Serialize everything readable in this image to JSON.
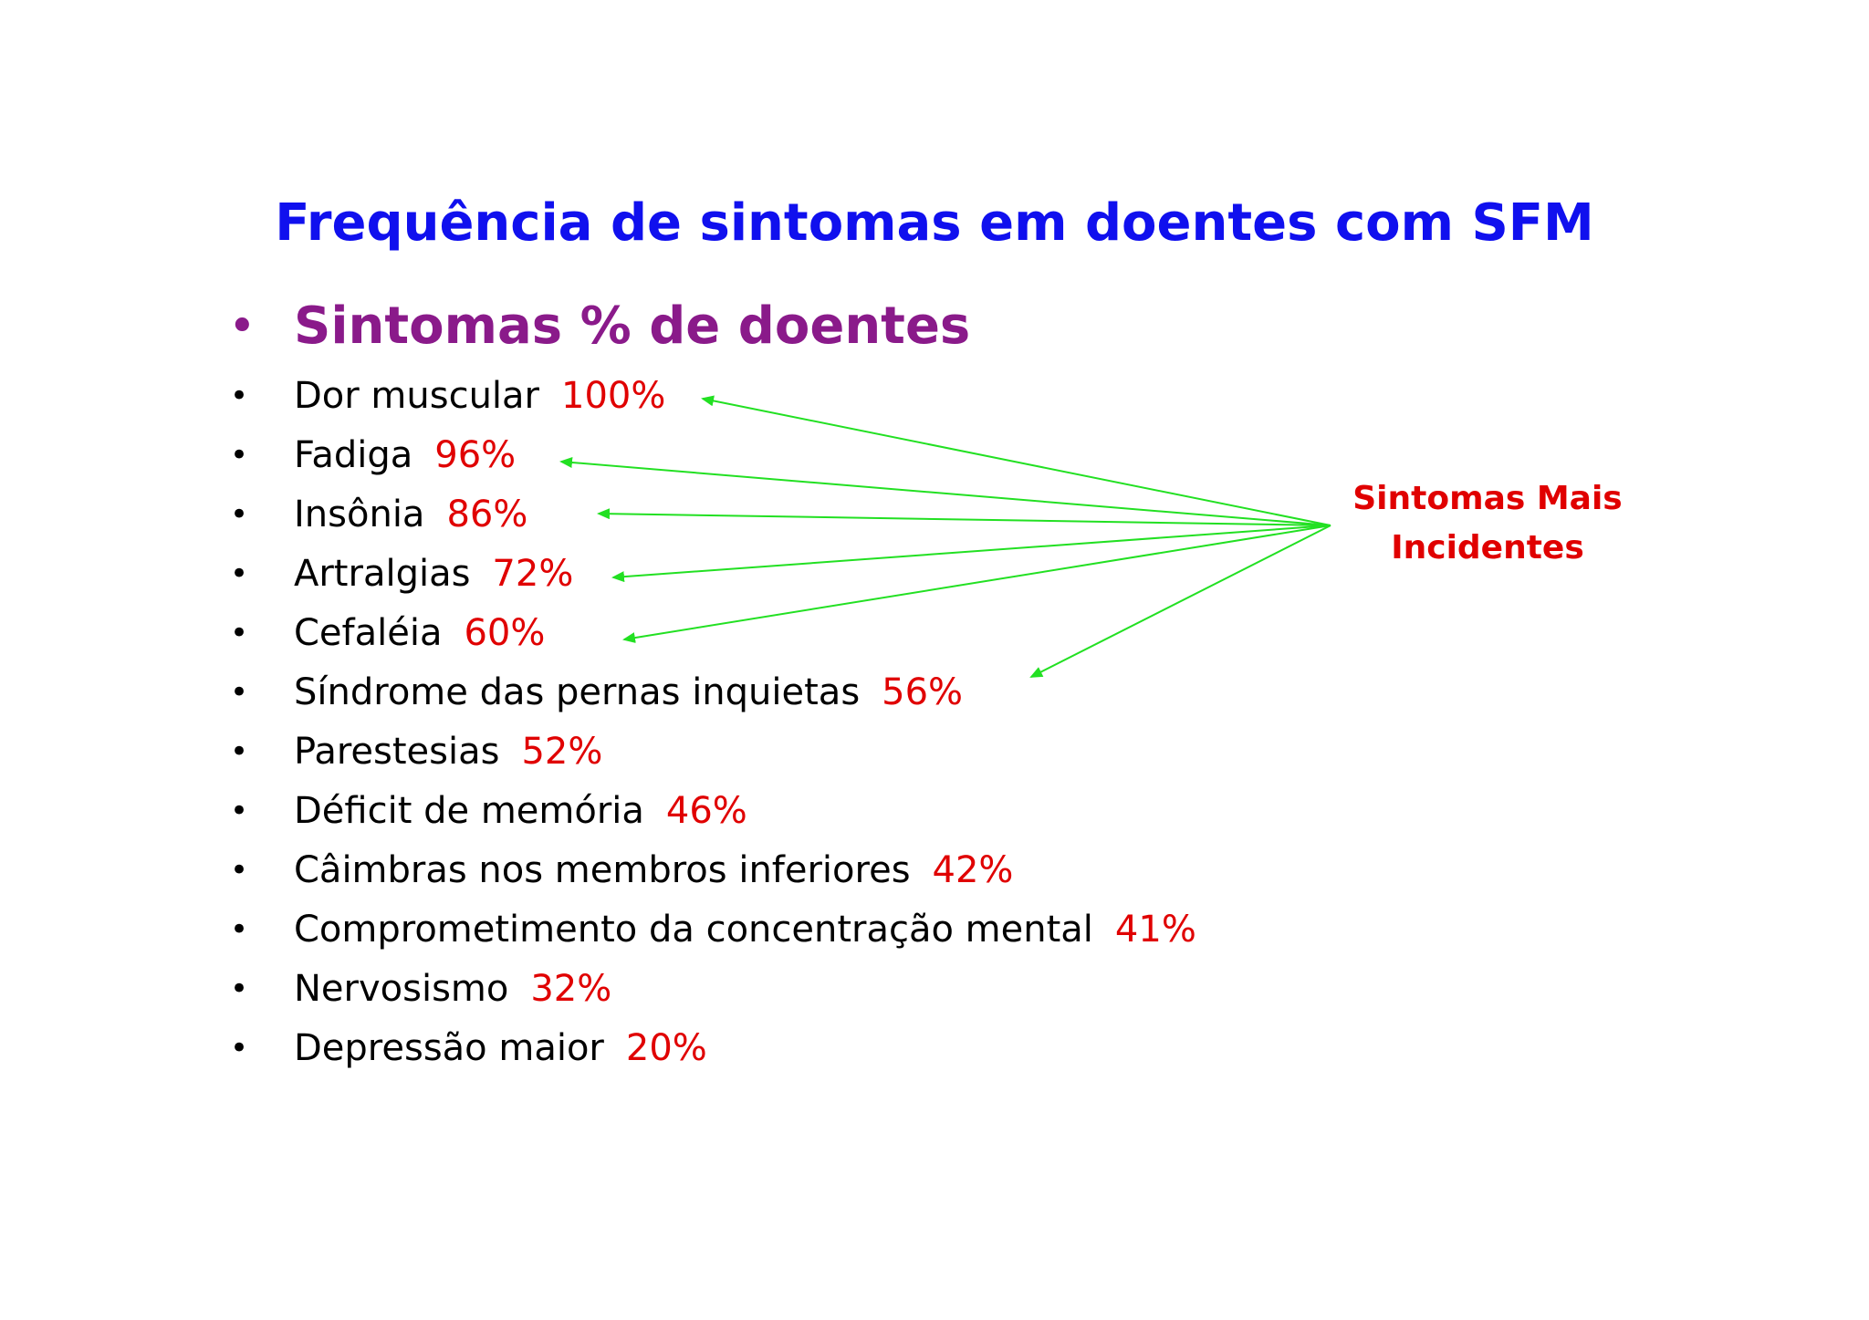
{
  "colors": {
    "title": "#1010ee",
    "heading": "#8a1a8a",
    "text": "#000000",
    "percent": "#e00000",
    "arrow": "#22e022",
    "callout": "#e00000"
  },
  "title": "Frequência de sintomas em  doentes com SFM",
  "heading": {
    "bullet": "•",
    "text": "Sintomas % de doentes"
  },
  "items": [
    {
      "bullet": "•",
      "label": "Dor muscular",
      "pct": "100%"
    },
    {
      "bullet": "•",
      "label": "Fadiga",
      "pct": "96%"
    },
    {
      "bullet": "•",
      "label": "Insônia",
      "pct": "86%"
    },
    {
      "bullet": "•",
      "label": "Artralgias",
      "pct": "72%"
    },
    {
      "bullet": "•",
      "label": "Cefaléia",
      "pct": "60%"
    },
    {
      "bullet": "•",
      "label": "Síndrome das pernas inquietas",
      "pct": "56%"
    },
    {
      "bullet": "•",
      "label": "Parestesias",
      "pct": "52%"
    },
    {
      "bullet": "•",
      "label": "Déficit de memória",
      "pct": "46%"
    },
    {
      "bullet": "•",
      "label": "Câimbras nos membros inferiores",
      "pct": "42%"
    },
    {
      "bullet": "•",
      "label": "Comprometimento da concentração mental",
      "pct": "41%"
    },
    {
      "bullet": "•",
      "label": "Nervosismo",
      "pct": "32%"
    },
    {
      "bullet": "•",
      "label": "Depressão maior",
      "pct": "20%"
    }
  ],
  "callout": {
    "line1": "Sintomas Mais",
    "line2": "Incidentes"
  }
}
